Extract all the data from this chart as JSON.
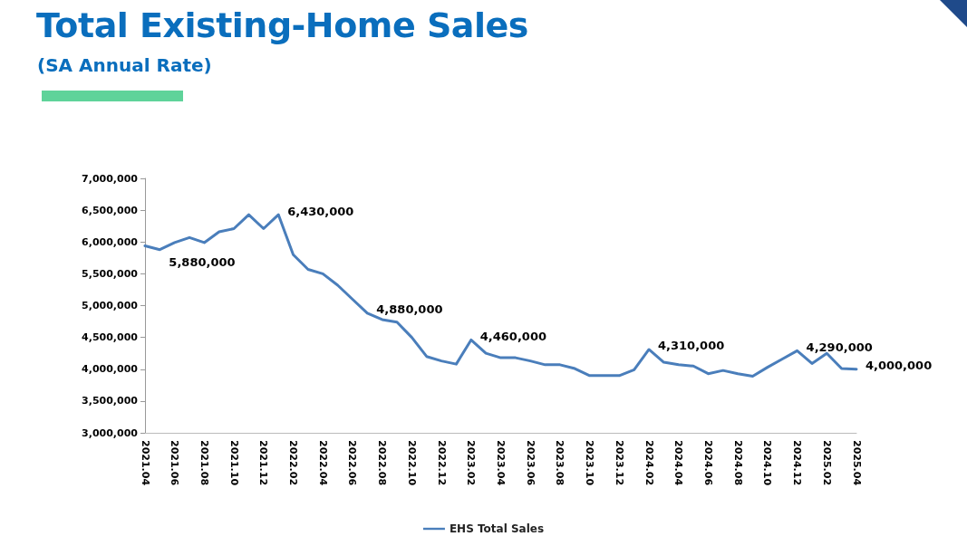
{
  "chart_data": {
    "type": "line",
    "title": "Total Existing-Home Sales",
    "subtitle": "(SA Annual Rate)",
    "categories": [
      "2021.04",
      null,
      "2021.06",
      null,
      "2021.08",
      null,
      "2021.10",
      null,
      "2021.12",
      null,
      "2022.02",
      null,
      "2022.04",
      null,
      "2022.06",
      null,
      "2022.08",
      null,
      "2022.10",
      null,
      "2022.12",
      null,
      "2023.02",
      null,
      "2023.04",
      null,
      "2023.06",
      null,
      "2023.08",
      null,
      "2023.10",
      null,
      "2023.12",
      null,
      "2024.02",
      null,
      "2024.04",
      null,
      "2024.06",
      null,
      "2024.08",
      null,
      "2024.10",
      null,
      "2024.12",
      null,
      "2025.02",
      null,
      "2025.04"
    ],
    "series": [
      {
        "name": "EHS Total Sales",
        "color": "#4a7ebb",
        "values": [
          5940000,
          5880000,
          5990000,
          6070000,
          5990000,
          6160000,
          6210000,
          6430000,
          6210000,
          6430000,
          5800000,
          5570000,
          5500000,
          5320000,
          5100000,
          4880000,
          4780000,
          4740000,
          4500000,
          4200000,
          4130000,
          4080000,
          4460000,
          4250000,
          4180000,
          4180000,
          4130000,
          4070000,
          4070000,
          4010000,
          3900000,
          3900000,
          3900000,
          3990000,
          4310000,
          4110000,
          4070000,
          4050000,
          3930000,
          3980000,
          3930000,
          3890000,
          4030000,
          4160000,
          4290000,
          4090000,
          4250000,
          4010000,
          4000000
        ],
        "value_labels": [
          null,
          "5,880,000",
          null,
          null,
          null,
          null,
          null,
          null,
          null,
          "6,430,000",
          null,
          null,
          null,
          null,
          null,
          "4,880,000",
          null,
          null,
          null,
          null,
          null,
          null,
          "4,460,000",
          null,
          null,
          null,
          null,
          null,
          null,
          null,
          null,
          null,
          null,
          null,
          "4,310,000",
          null,
          null,
          null,
          null,
          null,
          null,
          null,
          null,
          null,
          "4,290,000",
          null,
          null,
          null,
          "4,000,000"
        ]
      }
    ],
    "ylim": [
      3000000,
      7000000
    ],
    "yticks": [
      {
        "value": 3000000,
        "label": "3,000,000"
      },
      {
        "value": 3500000,
        "label": "3,500,000"
      },
      {
        "value": 4000000,
        "label": "4,000,000"
      },
      {
        "value": 4500000,
        "label": "4,500,000"
      },
      {
        "value": 5000000,
        "label": "5,000,000"
      },
      {
        "value": 5500000,
        "label": "5,500,000"
      },
      {
        "value": 6000000,
        "label": "6,000,000"
      },
      {
        "value": 6500000,
        "label": "6,500,000"
      },
      {
        "value": 7000000,
        "label": "7,000,000"
      }
    ],
    "grid": false,
    "legend": "bottom",
    "marker": "none",
    "line_style": "solid"
  }
}
